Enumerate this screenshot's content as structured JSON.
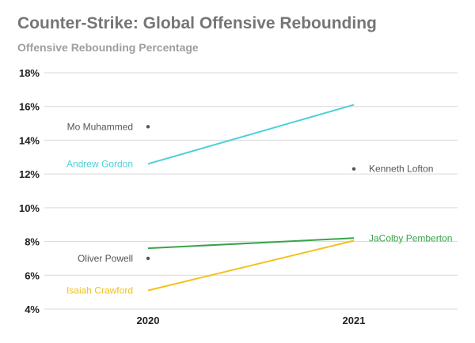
{
  "colors": {
    "title": "#757575",
    "subtitle": "#9e9e9e",
    "grid": "#d9d9d9",
    "point_gray": "#555555",
    "label_gray": "#555555"
  },
  "chart_data": {
    "type": "line",
    "title": "Counter-Strike: Global Offensive Rebounding",
    "subtitle": "Offensive Rebounding Percentage",
    "xlabel": "",
    "ylabel": "",
    "categories": [
      "2020",
      "2021"
    ],
    "ylim": [
      4,
      18
    ],
    "yticks": [
      "4%",
      "6%",
      "8%",
      "10%",
      "12%",
      "14%",
      "16%",
      "18%"
    ],
    "grid": true,
    "legend": "none",
    "series": [
      {
        "name": "Mo Muhammed",
        "values": [
          14.8,
          null
        ],
        "color": "#555555",
        "style": "point"
      },
      {
        "name": "Andrew Gordon",
        "values": [
          12.6,
          16.1
        ],
        "color": "#4dd0d8",
        "style": "line"
      },
      {
        "name": "Kenneth Lofton",
        "values": [
          null,
          12.3
        ],
        "color": "#555555",
        "style": "point"
      },
      {
        "name": "JaColby Pemberton",
        "values": [
          7.6,
          8.2
        ],
        "color": "#3aa34a",
        "style": "line"
      },
      {
        "name": "Oliver Powell",
        "values": [
          7.0,
          null
        ],
        "color": "#555555",
        "style": "point"
      },
      {
        "name": "Isaiah Crawford",
        "values": [
          5.1,
          8.05
        ],
        "color": "#f2c218",
        "style": "line"
      }
    ]
  }
}
